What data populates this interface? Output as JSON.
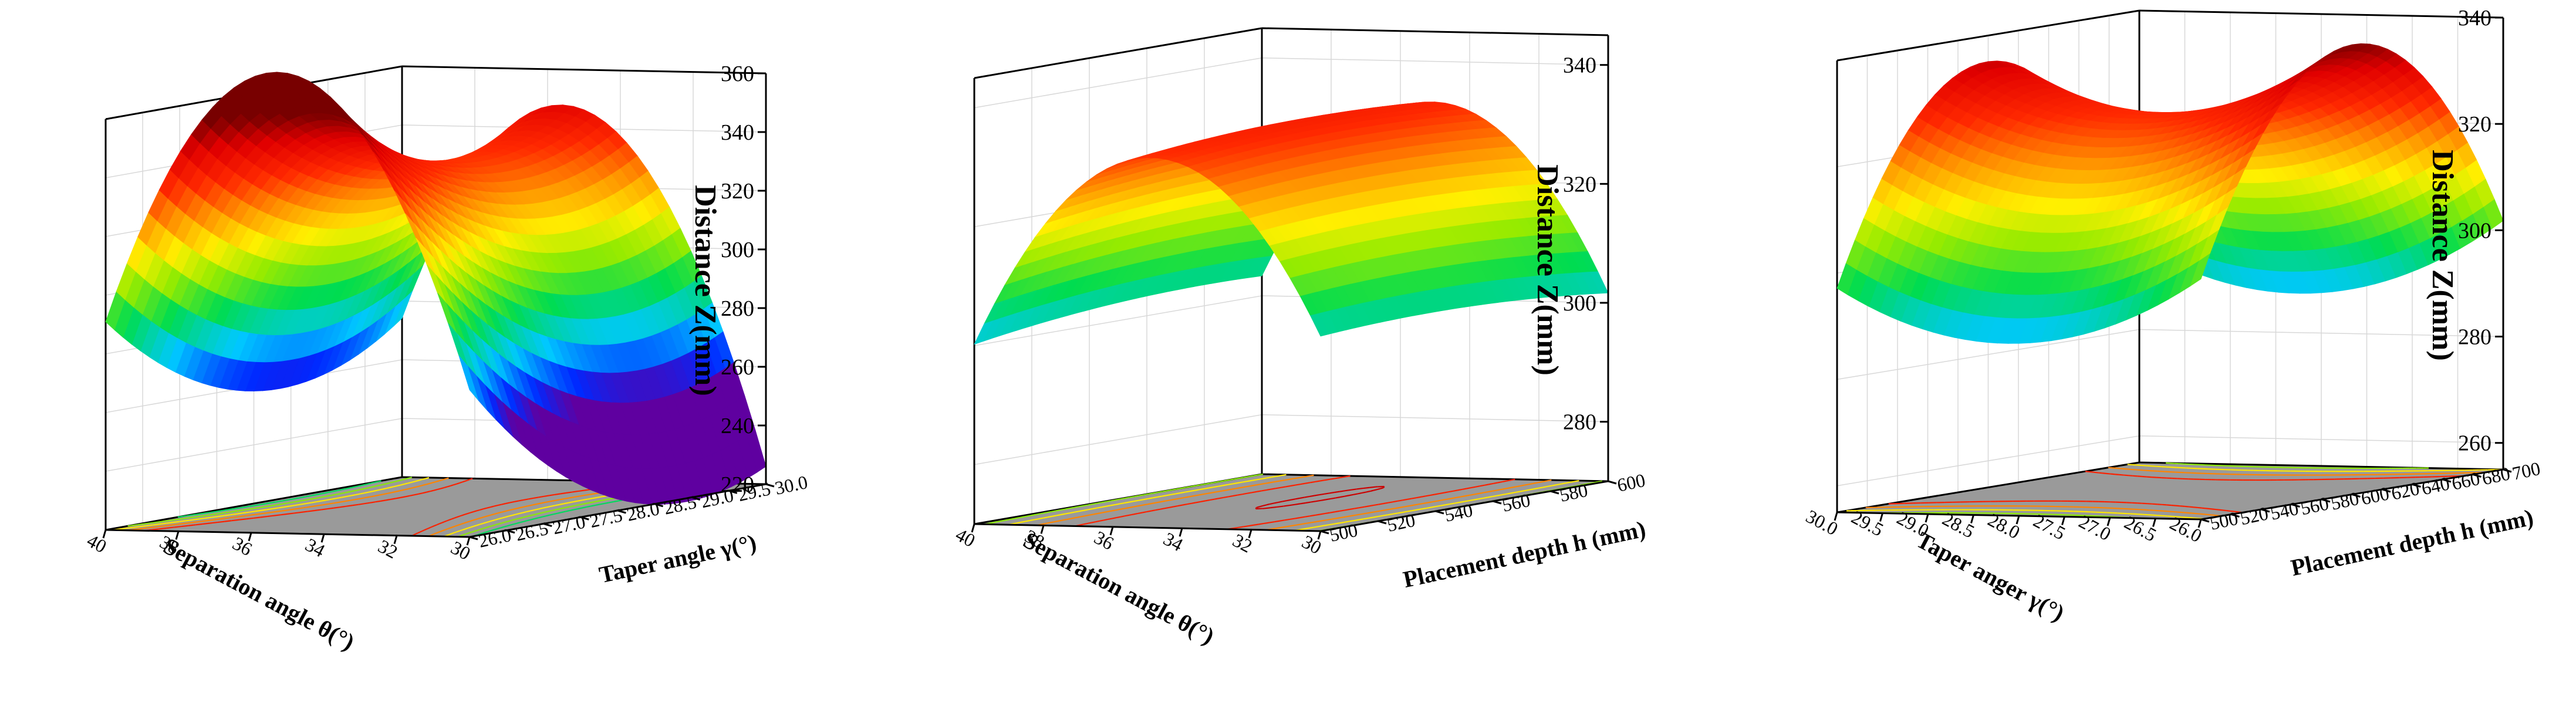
{
  "chart_data": [
    {
      "type": "surface3d",
      "z_label": "Distance Z(mm)",
      "zlim": [
        220,
        360
      ],
      "z_ticks": [
        "220",
        "240",
        "260",
        "280",
        "300",
        "320",
        "340",
        "360"
      ],
      "x_label": "Separation angle θ(°)",
      "x_ticks": [
        "30",
        "32",
        "34",
        "36",
        "38",
        "40"
      ],
      "xlim": [
        30,
        40
      ],
      "y_label": "Taper angle γ(°)",
      "y_ticks": [
        "26.0",
        "26.5",
        "27.0",
        "27.5",
        "28.0",
        "28.5",
        "29.0",
        "29.5",
        "30.0"
      ],
      "ylim": [
        26,
        30
      ],
      "corner_z": {
        "x_min_y_min": 247,
        "x_max_y_min": 226,
        "x_min_y_max": 262,
        "x_max_y_max": 305
      },
      "peak": {
        "x": 35.5,
        "y": 28.6,
        "z": 336
      },
      "grid": true,
      "colormap": "rainbow",
      "contour_floor": true
    },
    {
      "type": "surface3d",
      "z_label": "Distance Z(mm)",
      "zlim": [
        270,
        345
      ],
      "z_ticks": [
        "280",
        "300",
        "320",
        "340"
      ],
      "x_label": "Separation angle θ(°)",
      "x_ticks": [
        "30",
        "32",
        "34",
        "36",
        "38",
        "40"
      ],
      "xlim": [
        30,
        40
      ],
      "y_label": "Placement depth h (mm)",
      "y_ticks": [
        "500",
        "520",
        "540",
        "560",
        "580",
        "600"
      ],
      "ylim": [
        500,
        600
      ],
      "corner_z": {
        "x_min_y_min": 306,
        "x_max_y_min": 299,
        "x_min_y_max": 304,
        "x_max_y_max": 299
      },
      "peak": {
        "x": 35.0,
        "y": 560,
        "z": 334
      },
      "grid": true,
      "colormap": "rainbow",
      "contour_floor": true
    },
    {
      "type": "surface3d",
      "z_label": "Distance Z(mm)",
      "zlim": [
        255,
        340
      ],
      "z_ticks": [
        "260",
        "280",
        "300",
        "320",
        "340"
      ],
      "x_label": "Taper anger γ(°)",
      "x_ticks": [
        "26.0",
        "26.5",
        "27.0",
        "27.5",
        "28.0",
        "28.5",
        "29.0",
        "29.5",
        "30.0"
      ],
      "xlim": [
        26,
        30
      ],
      "y_label": "Placement depth h (mm)",
      "y_ticks": [
        "500",
        "520",
        "540",
        "560",
        "580",
        "600",
        "620",
        "640",
        "660",
        "680",
        "700"
      ],
      "ylim": [
        500,
        700
      ],
      "corner_z": {
        "x_min_y_min": 296,
        "x_max_y_min": 302,
        "x_min_y_max": 297,
        "x_max_y_max": 300
      },
      "peak": {
        "x": 28.2,
        "y": 600,
        "z": 326
      },
      "grid": true,
      "colormap": "rainbow",
      "contour_floor": true
    }
  ]
}
